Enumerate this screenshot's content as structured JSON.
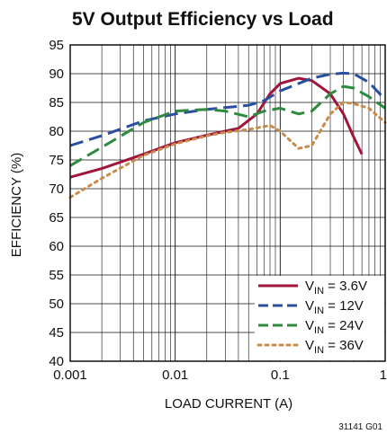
{
  "chart_data": {
    "type": "line",
    "title": "5V Output Efficiency vs Load",
    "xlabel": "LOAD CURRENT (A)",
    "ylabel": "EFFICIENCY (%)",
    "figure_id": "31141 G01",
    "x_scale": "log",
    "xlim": [
      0.001,
      1
    ],
    "ylim": [
      40,
      95
    ],
    "x_ticks": [
      0.001,
      0.01,
      0.1,
      1
    ],
    "x_tick_labels": [
      "0.001",
      "0.01",
      "0.1",
      "1"
    ],
    "y_ticks": [
      40,
      45,
      50,
      55,
      60,
      65,
      70,
      75,
      80,
      85,
      90,
      95
    ],
    "grid": true,
    "legend_position": "bottom-right",
    "series": [
      {
        "name": "V_IN = 3.6V",
        "legend_main": "V",
        "legend_sub": "IN",
        "legend_rest": " = 3.6V",
        "color": "#a0163a",
        "style": "solid",
        "x": [
          0.001,
          0.002,
          0.005,
          0.01,
          0.02,
          0.04,
          0.06,
          0.08,
          0.1,
          0.15,
          0.2,
          0.3,
          0.4,
          0.5,
          0.6
        ],
        "y": [
          72,
          73.5,
          76,
          78,
          79.3,
          80.5,
          83,
          86.5,
          88.3,
          89.2,
          88.8,
          86.5,
          83,
          79,
          76
        ]
      },
      {
        "name": "V_IN = 12V",
        "legend_main": "V",
        "legend_sub": "IN",
        "legend_rest": " = 12V",
        "color": "#2a4fa0",
        "style": "dash",
        "x": [
          0.001,
          0.002,
          0.005,
          0.01,
          0.02,
          0.05,
          0.07,
          0.1,
          0.2,
          0.3,
          0.4,
          0.5,
          0.7,
          1
        ],
        "y": [
          77.5,
          79.2,
          81.8,
          83,
          83.8,
          84.5,
          85.3,
          87,
          89.2,
          89.9,
          90.1,
          90,
          88.5,
          85.5
        ]
      },
      {
        "name": "V_IN = 24V",
        "legend_main": "V",
        "legend_sub": "IN",
        "legend_rest": " = 24V",
        "color": "#2e8a3e",
        "style": "dash",
        "x": [
          0.001,
          0.002,
          0.005,
          0.01,
          0.02,
          0.03,
          0.05,
          0.07,
          0.1,
          0.15,
          0.2,
          0.3,
          0.4,
          0.5,
          0.7,
          1
        ],
        "y": [
          74,
          77.2,
          81.5,
          83.5,
          83.8,
          83.5,
          82.5,
          83.5,
          84,
          83,
          83.5,
          86.5,
          87.8,
          87.5,
          86,
          84
        ]
      },
      {
        "name": "V_IN = 36V",
        "legend_main": "V",
        "legend_sub": "IN",
        "legend_rest": " = 36V",
        "color": "#c98a4a",
        "style": "dot",
        "x": [
          0.001,
          0.002,
          0.005,
          0.01,
          0.02,
          0.03,
          0.05,
          0.08,
          0.1,
          0.15,
          0.2,
          0.3,
          0.4,
          0.5,
          0.7,
          1
        ],
        "y": [
          68.5,
          71.8,
          75.8,
          77.8,
          79.2,
          79.8,
          80.3,
          81,
          80,
          77,
          77.5,
          83,
          85,
          84.8,
          84,
          81.5
        ]
      }
    ]
  }
}
